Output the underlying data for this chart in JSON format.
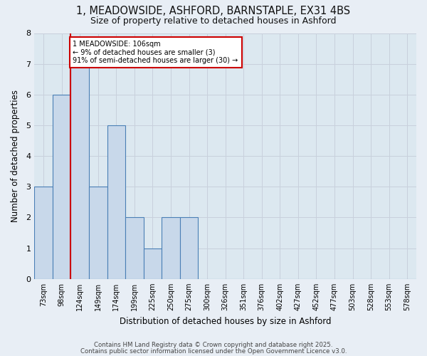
{
  "title_line1": "1, MEADOWSIDE, ASHFORD, BARNSTAPLE, EX31 4BS",
  "title_line2": "Size of property relative to detached houses in Ashford",
  "xlabel": "Distribution of detached houses by size in Ashford",
  "ylabel": "Number of detached properties",
  "categories": [
    "73sqm",
    "98sqm",
    "124sqm",
    "149sqm",
    "174sqm",
    "199sqm",
    "225sqm",
    "250sqm",
    "275sqm",
    "300sqm",
    "326sqm",
    "351sqm",
    "376sqm",
    "402sqm",
    "427sqm",
    "452sqm",
    "477sqm",
    "503sqm",
    "528sqm",
    "553sqm",
    "578sqm"
  ],
  "values": [
    3,
    6,
    7,
    3,
    5,
    2,
    1,
    2,
    2,
    0,
    0,
    0,
    0,
    0,
    0,
    0,
    0,
    0,
    0,
    0,
    0
  ],
  "bar_color": "#c8d8ea",
  "bar_edge_color": "#4a7fb5",
  "property_line_idx": 1.5,
  "property_line_label": "1 MEADOWSIDE: 106sqm",
  "annotation_line2": "← 9% of detached houses are smaller (3)",
  "annotation_line3": "91% of semi-detached houses are larger (30) →",
  "annotation_box_color": "#cc0000",
  "ylim": [
    0,
    8
  ],
  "yticks": [
    0,
    1,
    2,
    3,
    4,
    5,
    6,
    7,
    8
  ],
  "grid_color": "#c8d0dc",
  "plot_bg_color": "#dce8f0",
  "fig_bg_color": "#e8eef5",
  "footer_line1": "Contains HM Land Registry data © Crown copyright and database right 2025.",
  "footer_line2": "Contains public sector information licensed under the Open Government Licence v3.0."
}
